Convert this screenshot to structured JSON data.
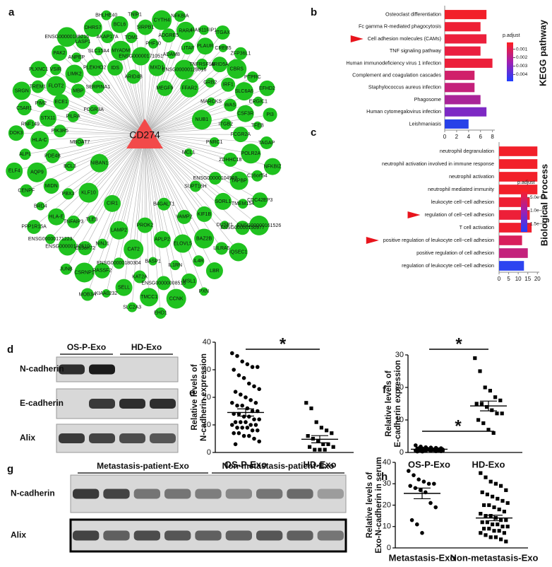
{
  "network": {
    "panel": "a",
    "center": "CD274",
    "nodes": [
      "MCL1",
      "NIBAN1",
      "MEGF9",
      "B4GALT1",
      "FCGR3A",
      "NUB1",
      "CIR1",
      "ARID4B",
      "SUPT16H",
      "MBOAT7",
      "FFAR2",
      "PROK2",
      "SERPINA1",
      "PNRC1",
      "KLF10",
      "MXD1",
      "VAMP2",
      "PILRA",
      "MARCKS",
      "LAMP2",
      "IDS",
      "ENSG00000104969",
      "BCL3",
      "ENSG00000128016",
      "APLP2",
      "MBP",
      "ITGB2",
      "TLE3",
      "ENSG00000171051",
      "KIF1B",
      "PIK3R5",
      "GRB2",
      "CAT2",
      "PLEKHO2",
      "ZDHHC18",
      "PBX3",
      "ADAM8",
      "ELOVL5",
      "ECE1",
      "WAS",
      "NINJ1",
      "MYADM",
      "SORL1",
      "PDE4B",
      "TNFRSF1B",
      "BASP1",
      "LIMK2",
      "FCGR2A",
      "TNFAIP3",
      "PHF10",
      "BAZ2B",
      "STX11",
      "IRF1",
      "ENSG00000180304",
      "SLC15A4",
      "TAPBP",
      "MIDN",
      "LITAF",
      "IL1RN",
      "FLOT2",
      "CSF3R",
      "C15orf72",
      "TOM1",
      "DUSP1",
      "HLA-C",
      "ARID5A",
      "KAT2A",
      "ANPEP",
      "POLR2A",
      "HLA-E",
      "ADGRE5",
      "IL4R",
      "PIM2",
      "SLC6A6",
      "RASSF2",
      "AKAP17A",
      "TMEM154",
      "AQP9",
      "PLAUR",
      "ENSG00000008516",
      "VSIR",
      "TFEB",
      "ENSG00000132510",
      "SIRPB1",
      "LILRA5",
      "RNF149",
      "CBRS",
      "SELL",
      "LASP1",
      "C16orf54",
      "BRD4",
      "RARA",
      "MSL1",
      "TREM1",
      "ERGIC1",
      "CSRNP1",
      "BCL6",
      "ENSG00000150977",
      "ALPL",
      "CREB5",
      "TMCC1",
      "PAK2",
      "TAGAP",
      "ENSG00000171223",
      "CYTH4",
      "LBR",
      "C5AR1",
      "PTPRC",
      "KIAA0232",
      "DHRS7",
      "CDC42EP3",
      "CENPF",
      "RAB11FIP1",
      "CCNK",
      "PLXNC1",
      "PI3",
      "JUNB",
      "TNIP1",
      "IQSEC1",
      "DOK3",
      "ZFP36L1",
      "SLC2A3",
      "ENSG00000185215",
      "NFKBIZ",
      "PPP1R15A",
      "NFKBIA",
      "PXN",
      "SRGN",
      "EFHD2",
      "MOB3A",
      "BHLHE40",
      "ENSG00000161526",
      "ELF4",
      "ITGAX",
      "EHD1"
    ]
  },
  "blots": [
    {
      "panel": "d",
      "groups": [
        "OS-P-Exo",
        "HD-Exo"
      ],
      "rows": [
        "N-cadherin",
        "E-cadherin",
        "Alix"
      ]
    },
    {
      "panel": "g",
      "groups": [
        "Metastasis-patient-Exo",
        "Non-metastasis-patient-Exo"
      ],
      "rows": [
        "N-cadherin",
        "Alix"
      ]
    }
  ],
  "chart_data": [
    {
      "type": "hbar",
      "panel": "b",
      "title": "KEGG pathway",
      "categories": [
        "Osteoclast differentiation",
        "Fc gamma R-mediated phagocytosis",
        "Cell adhesion molecules (CAMs)",
        "TNF signaling pathway",
        "Human immunodeficiency virus 1 infection",
        "Complement and coagulation cascades",
        "Staphylococcus aureus infection",
        "Phagosome",
        "Human cytomegalovirus infection",
        "Leishmaniasis"
      ],
      "values": [
        7,
        6,
        7,
        6,
        8,
        5,
        5,
        6,
        7,
        4
      ],
      "colors": [
        "#f2202a",
        "#ee1f35",
        "#ec1f3c",
        "#ea1f40",
        "#ec1f3a",
        "#d0206a",
        "#c4207a",
        "#a92398",
        "#7d29c4",
        "#2741e8"
      ],
      "highlight": [
        2
      ],
      "xlim": [
        0,
        8.4
      ],
      "xticks": [
        0,
        2,
        4,
        6,
        8
      ],
      "legend_title": "p.adjust",
      "colorbar_colors": [
        "#ff1f1f",
        "#a21fb0",
        "#1f3fff"
      ],
      "colorbar_lim": [
        0.0002,
        0.0048
      ],
      "colorbar_ticks": [
        0.001,
        0.002,
        0.003,
        0.004
      ]
    },
    {
      "type": "hbar",
      "panel": "c",
      "title": "Biological Process",
      "categories": [
        "neutrophil degranulation",
        "neutrophil activation involved in immune response",
        "neutrophil activation",
        "neutrophil mediated immunity",
        "leukocyte cell−cell adhesion",
        "regulation of cell−cell adhesion",
        "T cell activation",
        "positive regulation of leukocyte cell−cell adhesion",
        "positive regulation of cell adhesion",
        "regulation of leukocyte cell−cell adhesion"
      ],
      "values": [
        20,
        20,
        20,
        20,
        16,
        16,
        17,
        12,
        15,
        13
      ],
      "colors": [
        "#f2202a",
        "#f2202a",
        "#f2202a",
        "#f2202a",
        "#ee1f33",
        "#ed1f38",
        "#f01f2f",
        "#d81f5c",
        "#c4227c",
        "#2d44f0"
      ],
      "highlight": [
        5,
        7
      ],
      "xlim": [
        0,
        21
      ],
      "xticks": [
        0,
        5,
        10,
        15,
        20
      ],
      "legend_title": "p.adjust",
      "colorbar_colors": [
        "#ff1f1f",
        "#a21fb0",
        "#1f3fff"
      ],
      "colorbar_lim": [
        2e-08,
        1.8e-07
      ],
      "colorbar_ticks": [
        {
          "value": 5e-08,
          "label": "5.0e−08"
        },
        {
          "value": 1e-07,
          "label": "1.0e−07"
        },
        {
          "value": 1.5e-07,
          "label": "1.5e−07"
        }
      ]
    },
    {
      "type": "dots",
      "panel": "e",
      "ylabel": [
        "Relative levels of",
        "N-cadherin expression"
      ],
      "categories": [
        "OS-P-Exo",
        "HD-Exo"
      ],
      "markers": [
        "circle",
        "square"
      ],
      "values": [
        [
          36,
          35,
          33,
          32,
          31,
          31,
          30,
          28,
          27,
          25,
          24,
          23,
          22,
          21,
          20,
          19,
          18,
          18,
          17,
          17,
          16,
          15,
          15,
          14,
          14,
          13,
          13,
          12,
          12,
          11,
          11,
          11,
          10,
          10,
          10,
          9,
          9,
          9,
          8,
          8,
          7,
          7,
          6,
          6,
          5,
          4,
          3
        ],
        [
          18,
          16,
          11,
          9,
          8,
          7,
          6,
          5,
          4,
          3,
          3,
          2,
          2,
          1,
          1,
          1
        ]
      ],
      "means": [
        14.5,
        4.8
      ],
      "errors": [
        1.3,
        1.3
      ],
      "significance": "*",
      "ylim": [
        0,
        40
      ],
      "yticks": [
        0,
        10,
        20,
        30,
        40
      ]
    },
    {
      "type": "dots",
      "panel": "f",
      "ylabel": [
        "Relative levels of",
        "E-cadherin expression"
      ],
      "categories": [
        "OS-P-Exo",
        "HD-Exo"
      ],
      "markers": [
        "circle",
        "square"
      ],
      "values": [
        [
          2.2,
          1.8,
          1.6,
          1.5,
          1.4,
          1.3,
          1.2,
          1.2,
          1.1,
          1.0,
          1.0,
          0.9,
          0.9,
          0.8,
          0.8,
          0.7,
          0.7,
          0.6,
          0.6,
          0.5,
          0.5,
          0.4,
          0.4,
          0.3,
          0.3,
          1.1,
          0.9,
          0.7,
          0.5,
          1.3
        ],
        [
          29,
          25,
          20,
          19,
          17,
          16,
          15,
          15,
          14,
          13,
          12,
          12,
          10,
          9,
          7,
          6
        ]
      ],
      "means": [
        1.0,
        14.3
      ],
      "errors": [
        0.1,
        1.5
      ],
      "significance": "*",
      "ylim": [
        0,
        30
      ],
      "yticks": [
        0,
        10,
        20,
        30
      ]
    },
    {
      "type": "dots",
      "panel": "h",
      "ylabel": [
        "Relative levels of",
        "Exo-N-cadherin in serum"
      ],
      "categories": [
        "Metastasis-Exo",
        "Non-metastasis-Exo"
      ],
      "markers": [
        "circle",
        "square"
      ],
      "values": [
        [
          36,
          34,
          32,
          31,
          30,
          30,
          29,
          28,
          27,
          26,
          21,
          19,
          13,
          11,
          7
        ],
        [
          35,
          33,
          31,
          30,
          29,
          27,
          26,
          25,
          24,
          23,
          22,
          21,
          20,
          20,
          19,
          18,
          17,
          16,
          15,
          15,
          14,
          13,
          13,
          12,
          12,
          11,
          11,
          10,
          10,
          9,
          9,
          8,
          8,
          7,
          7,
          6,
          5,
          5,
          4,
          3
        ]
      ],
      "means": [
        25.5,
        14
      ],
      "errors": [
        2.5,
        1.3
      ],
      "significance": "*",
      "ylim": [
        0,
        40
      ],
      "yticks": [
        0,
        10,
        20,
        30,
        40
      ]
    }
  ]
}
